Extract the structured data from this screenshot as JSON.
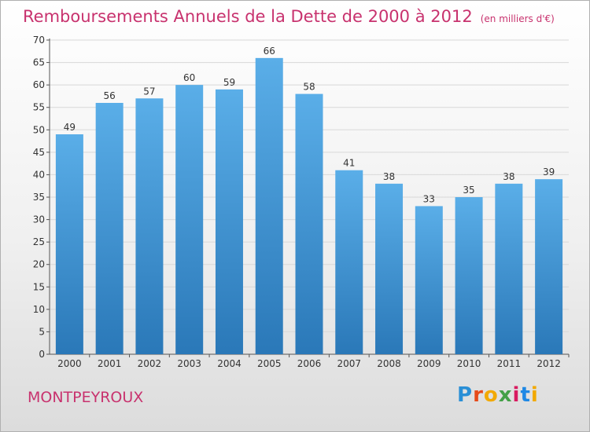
{
  "header": {
    "title": "Remboursements Annuels de la Dette de 2000 à 2012",
    "unit": "(en milliers d'€)"
  },
  "footer": {
    "commune": "MONTPEYROUX",
    "logo": "Proxiti"
  },
  "colors": {
    "bar_top": "#5aaee8",
    "bar_bottom": "#2a78b8",
    "title": "#c8326e",
    "grid": "#d8d8d8"
  },
  "chart_data": {
    "type": "bar",
    "title": "Remboursements Annuels de la Dette de 2000 à 2012",
    "subtitle": "(en milliers d'€)",
    "xlabel": "",
    "ylabel": "",
    "categories": [
      "2000",
      "2001",
      "2002",
      "2003",
      "2004",
      "2005",
      "2006",
      "2007",
      "2008",
      "2009",
      "2010",
      "2011",
      "2012"
    ],
    "values": [
      49,
      56,
      57,
      60,
      59,
      66,
      58,
      41,
      38,
      33,
      35,
      38,
      39
    ],
    "ylim": [
      0,
      70
    ],
    "yticks": [
      0,
      5,
      10,
      15,
      20,
      25,
      30,
      35,
      40,
      45,
      50,
      55,
      60,
      65,
      70
    ],
    "grid": true,
    "legend": "none"
  }
}
